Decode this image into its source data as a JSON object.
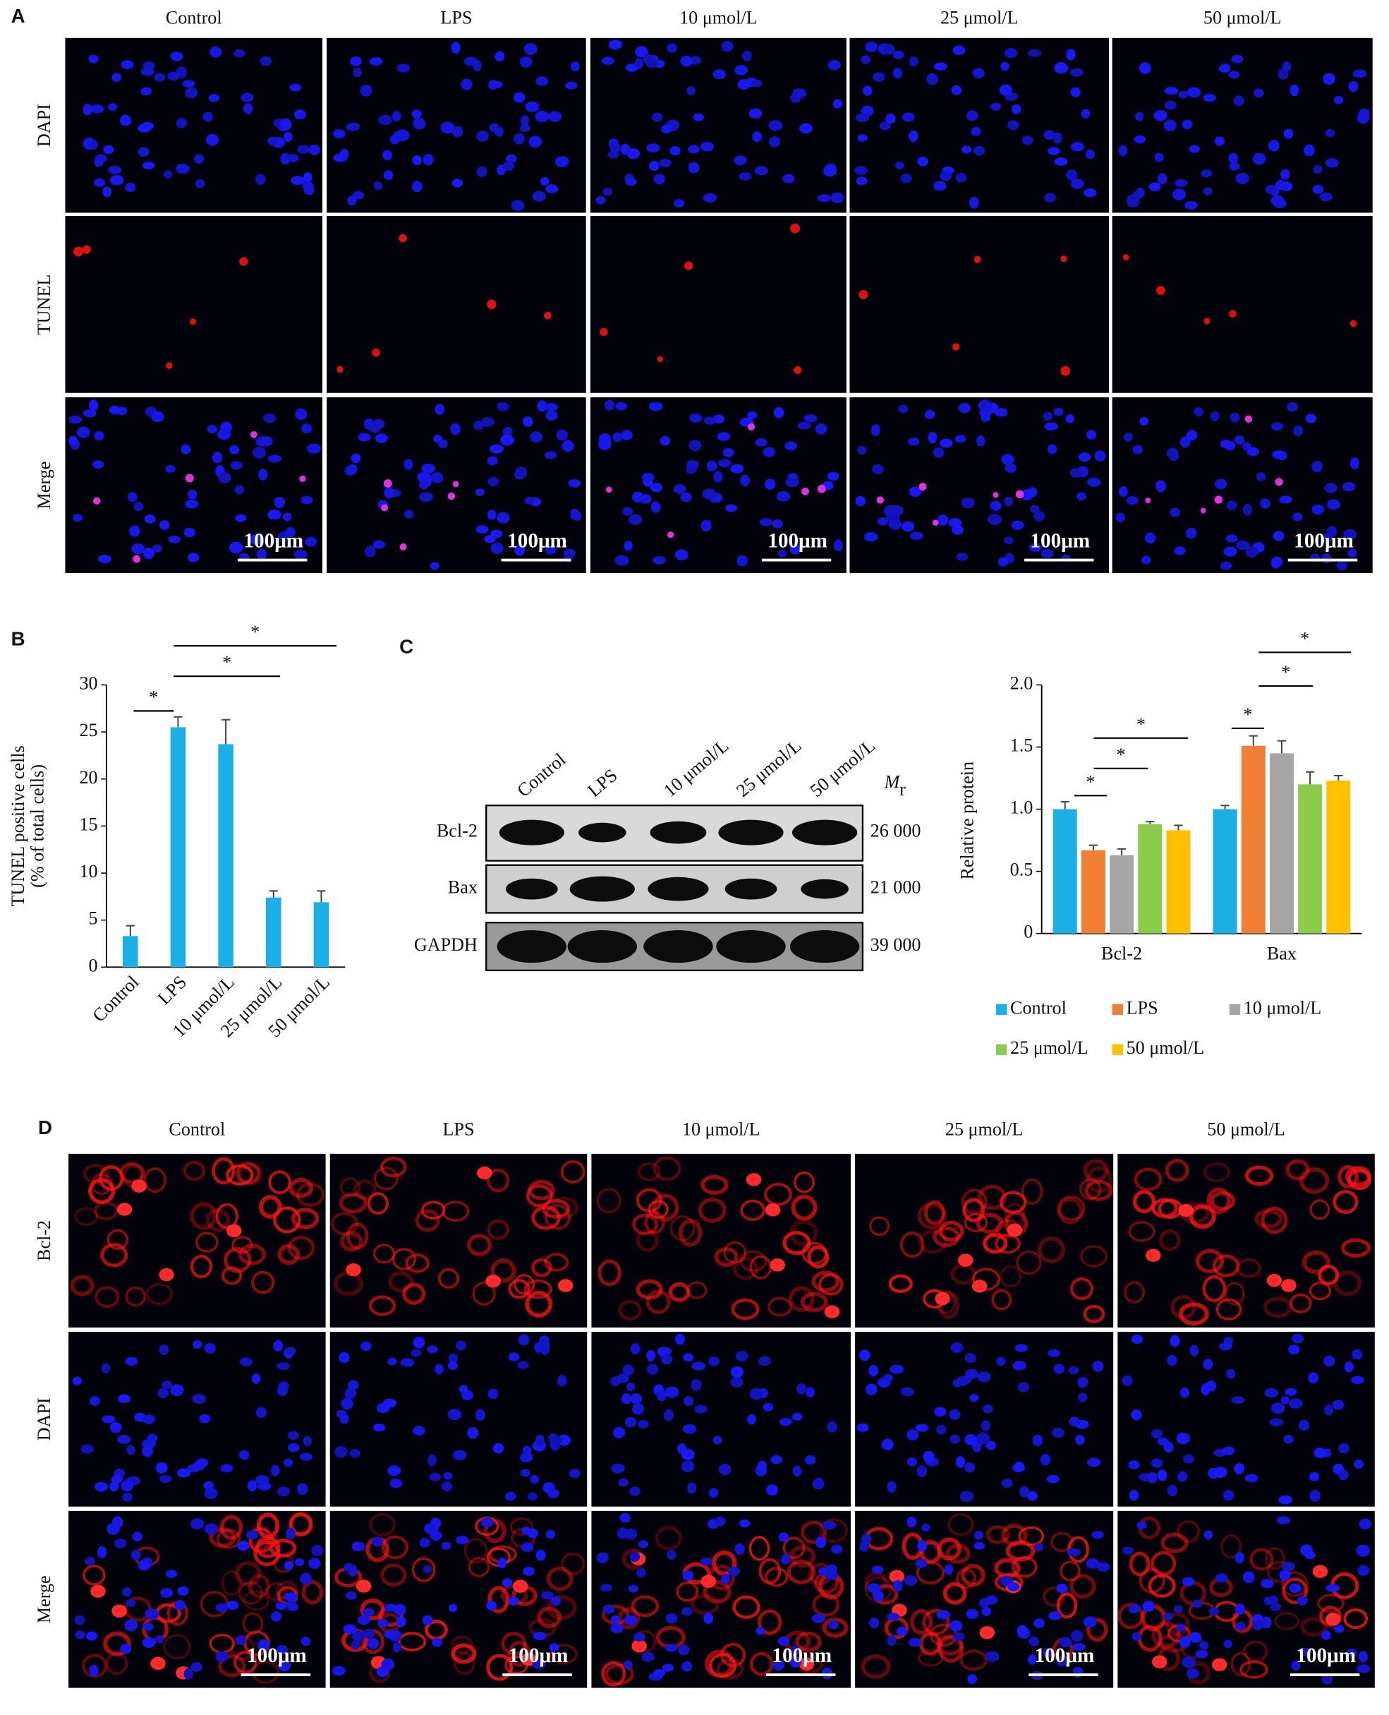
{
  "panel_a": {
    "label": "A",
    "columns": [
      "Control",
      "LPS",
      "10 μmol/L",
      "25 μmol/L",
      "50 μmol/L"
    ],
    "rows": [
      "DAPI",
      "TUNEL",
      "Merge"
    ],
    "scale_bar": "100μm"
  },
  "chart_data": [
    {
      "type": "bar",
      "panel_label": "B",
      "categories": [
        "Control",
        "LPS",
        "10 μmol/L",
        "25 μmol/L",
        "50 μmol/L"
      ],
      "values": [
        3.3,
        25.5,
        23.7,
        7.4,
        6.9
      ],
      "errors": [
        1.1,
        1.1,
        2.6,
        0.7,
        1.2
      ],
      "color": "#1aafe6",
      "ylabel": [
        "TUNEL positive cells",
        "(% of total cells)"
      ],
      "ylim": [
        0,
        30
      ],
      "yticks": [
        0,
        5,
        10,
        15,
        20,
        25,
        30
      ],
      "annotations": [
        "*",
        "*",
        "*"
      ]
    },
    {
      "type": "bar",
      "categories": [
        "Bcl-2",
        "Bax"
      ],
      "series": [
        {
          "name": "Control",
          "color": "#1aafe6",
          "values": [
            1.0,
            1.0
          ],
          "errors": [
            0.06,
            0.03
          ]
        },
        {
          "name": "LPS",
          "color": "#f07f35",
          "values": [
            0.67,
            1.51
          ],
          "errors": [
            0.04,
            0.08
          ]
        },
        {
          "name": "10 μmol/L",
          "color": "#a5a5a5",
          "values": [
            0.63,
            1.45
          ],
          "errors": [
            0.05,
            0.1
          ]
        },
        {
          "name": "25 μmol/L",
          "color": "#8ccc4a",
          "values": [
            0.88,
            1.2
          ],
          "errors": [
            0.02,
            0.1
          ]
        },
        {
          "name": "50 μmol/L",
          "color": "#ffc000",
          "values": [
            0.83,
            1.23
          ],
          "errors": [
            0.04,
            0.04
          ]
        }
      ],
      "ylabel": "Relative protein",
      "ylim": [
        0,
        2
      ],
      "yticks": [
        0,
        0.5,
        {
          "value": 1,
          "label": "1.0"
        },
        1.5,
        {
          "value": 2,
          "label": "2.0"
        }
      ],
      "legend": "bottom",
      "annotations": [
        "*",
        "*",
        "*",
        "*",
        "*",
        "*"
      ]
    }
  ],
  "panel_c": {
    "label": "C",
    "lanes": [
      "Control",
      "LPS",
      "10 μmol/L",
      "25 μmol/L",
      "50 μmol/L"
    ],
    "mr": {
      "symbol": "M",
      "subscript": "r"
    },
    "rows": [
      {
        "name": "Bcl-2",
        "mass": "26 000"
      },
      {
        "name": "Bax",
        "mass": "21 000"
      },
      {
        "name": "GAPDH",
        "mass": "39 000"
      }
    ]
  },
  "panel_d": {
    "label": "D",
    "columns": [
      "Control",
      "LPS",
      "10 μmol/L",
      "25 μmol/L",
      "50 μmol/L"
    ],
    "rows": [
      "Bcl-2",
      "DAPI",
      "Merge"
    ],
    "scale_bar": "100μm"
  }
}
